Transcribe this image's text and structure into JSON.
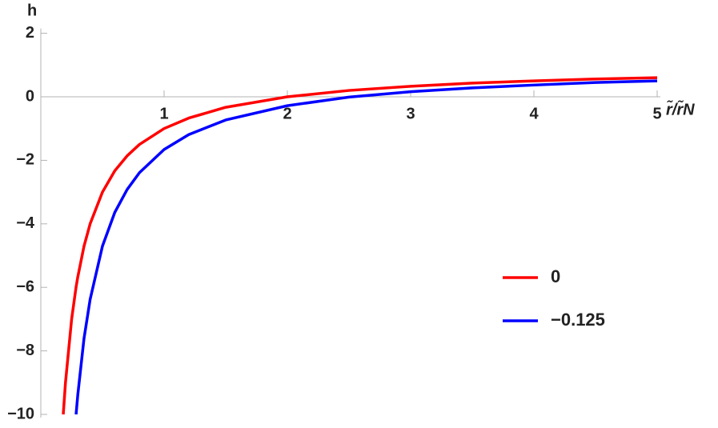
{
  "chart_data": {
    "type": "line",
    "x_label": "r̃/r̃N",
    "y_label": "h",
    "x": [
      0.182,
      0.2,
      0.25,
      0.286,
      0.3,
      0.35,
      0.4,
      0.5,
      0.6,
      0.7,
      0.8,
      1,
      1.2,
      1.5,
      2,
      2.5,
      3,
      3.5,
      4,
      4.5,
      5
    ],
    "series": [
      {
        "name": "0",
        "color": "#ff0000",
        "values": [
          -10,
          -9,
          -7,
          -5.99,
          -5.67,
          -4.71,
          -4,
          -3,
          -2.33,
          -1.86,
          -1.5,
          -1,
          -0.67,
          -0.33,
          0,
          0.2,
          0.33,
          0.43,
          0.5,
          0.56,
          0.6
        ]
      },
      {
        "name": "−0.125",
        "color": "#0000ff",
        "values": [
          null,
          null,
          null,
          -10,
          -9.38,
          -7.62,
          -6.38,
          -4.7,
          -3.64,
          -2.92,
          -2.39,
          -1.66,
          -1.19,
          -0.73,
          -0.28,
          -0.01,
          0.16,
          0.28,
          0.37,
          0.45,
          0.5
        ]
      }
    ],
    "xlim": [
      0,
      5
    ],
    "ylim": [
      -10,
      2
    ],
    "xticks": [
      1,
      2,
      3,
      4,
      5
    ],
    "yticks": [
      {
        "value": -10,
        "label": "−10"
      },
      {
        "value": -8,
        "label": "−8"
      },
      {
        "value": -6,
        "label": "−6"
      },
      {
        "value": -4,
        "label": "−4"
      },
      {
        "value": -2,
        "label": "−2"
      },
      0,
      2
    ],
    "legend": "lower-right"
  }
}
